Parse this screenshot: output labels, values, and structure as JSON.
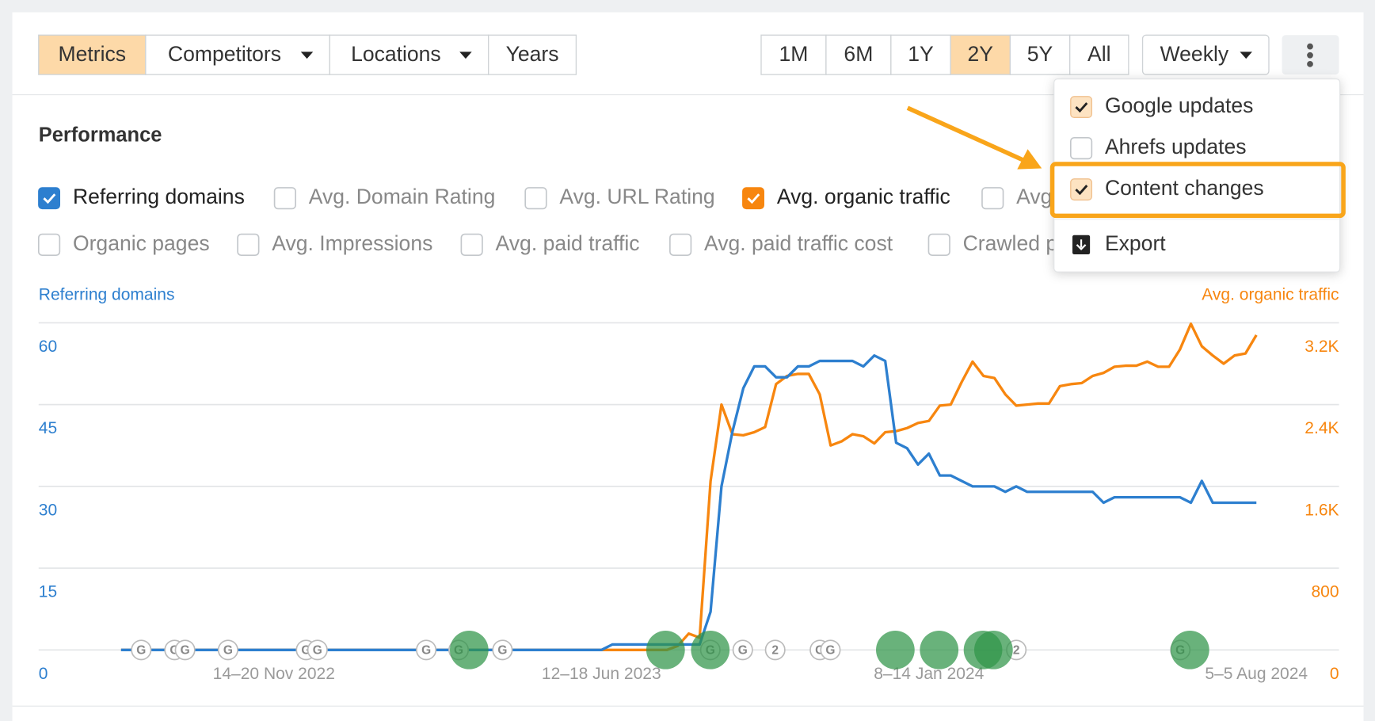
{
  "toolbar": {
    "view_tabs": [
      {
        "label": "Metrics",
        "active": true
      },
      {
        "label": "Competitors",
        "dropdown": true
      },
      {
        "label": "Locations",
        "dropdown": true
      },
      {
        "label": "Years"
      }
    ],
    "ranges": [
      {
        "label": "1M"
      },
      {
        "label": "6M"
      },
      {
        "label": "1Y"
      },
      {
        "label": "2Y",
        "active": true
      },
      {
        "label": "5Y"
      },
      {
        "label": "All"
      }
    ],
    "interval": {
      "label": "Weekly",
      "dropdown": true
    }
  },
  "menu": {
    "items": [
      {
        "label": "Google updates",
        "checked": true
      },
      {
        "label": "Ahrefs updates",
        "checked": false
      },
      {
        "label": "Content changes",
        "checked": true,
        "highlighted": true
      },
      {
        "label": "Export"
      }
    ]
  },
  "performance": {
    "title": "Performance",
    "metrics": [
      [
        {
          "label": "Referring domains",
          "checked": true
        },
        {
          "label": "Avg. Domain Rating",
          "checked": false
        },
        {
          "label": "Avg. URL Rating",
          "checked": false
        },
        {
          "label": "Avg. organic traffic",
          "checked": true
        },
        {
          "label": "Avg",
          "checked": false
        }
      ],
      [
        {
          "label": "Organic pages",
          "checked": false
        },
        {
          "label": "Avg. Impressions",
          "checked": false
        },
        {
          "label": "Avg. paid traffic",
          "checked": false
        },
        {
          "label": "Avg. paid traffic cost",
          "checked": false
        },
        {
          "label": "Crawled p",
          "checked": false
        }
      ]
    ]
  },
  "chart_data": {
    "type": "line",
    "categories": [
      null,
      null,
      null,
      null,
      null,
      null,
      null,
      null,
      null,
      null,
      null,
      null,
      null,
      null,
      "14–20 Nov 2022",
      null,
      null,
      null,
      null,
      null,
      null,
      null,
      null,
      null,
      null,
      null,
      null,
      null,
      null,
      null,
      null,
      null,
      null,
      null,
      null,
      null,
      null,
      null,
      null,
      null,
      null,
      null,
      null,
      null,
      "12–18 Jun 2023",
      null,
      null,
      null,
      null,
      null,
      null,
      null,
      null,
      null,
      null,
      null,
      null,
      null,
      null,
      null,
      null,
      null,
      null,
      null,
      null,
      null,
      null,
      null,
      null,
      null,
      null,
      null,
      null,
      null,
      "8–14 Jan 2024",
      null,
      null,
      null,
      null,
      null,
      null,
      null,
      null,
      null,
      null,
      null,
      null,
      null,
      null,
      null,
      null,
      null,
      null,
      null,
      null,
      null,
      null,
      null,
      null,
      null,
      null,
      null,
      null,
      null,
      "5–5 Aug 2024"
    ],
    "series": [
      {
        "name": "Referring domains",
        "color": "#2d7fcf",
        "values": [
          0,
          0,
          0,
          0,
          0,
          0,
          0,
          0,
          0,
          0,
          0,
          0,
          0,
          0,
          0,
          0,
          0,
          0,
          0,
          0,
          0,
          0,
          0,
          0,
          0,
          0,
          0,
          0,
          0,
          0,
          0,
          0,
          0,
          0,
          0,
          0,
          0,
          0,
          0,
          0,
          0,
          0,
          0,
          0,
          0,
          1,
          1,
          1,
          1,
          1,
          1,
          1,
          1,
          1,
          7,
          30,
          40,
          48,
          52,
          52,
          50,
          50,
          52,
          52,
          53,
          53,
          53,
          53,
          52,
          54,
          53,
          38,
          37,
          34,
          36,
          32,
          32,
          31,
          30,
          30,
          30,
          29,
          30,
          29,
          29,
          29,
          29,
          29,
          29,
          29,
          27,
          28,
          28,
          28,
          28,
          28,
          28,
          28,
          27,
          31,
          27,
          27,
          27,
          27,
          27
        ]
      },
      {
        "name": "Avg. organic traffic",
        "color": "#f7860f",
        "axis": "y2",
        "values": [
          0,
          0,
          0,
          0,
          0,
          0,
          0,
          0,
          0,
          0,
          0,
          0,
          0,
          0,
          0,
          0,
          0,
          0,
          0,
          0,
          0,
          0,
          0,
          0,
          0,
          0,
          0,
          0,
          0,
          0,
          0,
          0,
          0,
          0,
          0,
          0,
          0,
          0,
          0,
          0,
          0,
          0,
          0,
          0,
          0,
          0,
          0,
          0,
          0,
          0,
          0,
          40,
          160,
          120,
          1650,
          2400,
          2110,
          2100,
          2130,
          2180,
          2600,
          2680,
          2700,
          2700,
          2500,
          2000,
          2040,
          2110,
          2090,
          2020,
          2130,
          2140,
          2170,
          2220,
          2240,
          2390,
          2400,
          2620,
          2820,
          2680,
          2660,
          2500,
          2390,
          2400,
          2410,
          2410,
          2580,
          2600,
          2610,
          2680,
          2710,
          2770,
          2780,
          2780,
          2820,
          2770,
          2770,
          2940,
          3190,
          2970,
          2880,
          2800,
          2880,
          2900,
          3080
        ]
      }
    ],
    "ylim": [
      0,
      60
    ],
    "yticks": [
      0,
      15,
      30,
      45,
      60
    ],
    "y2lim": [
      0,
      3200
    ],
    "y2ticks": [
      0,
      800,
      {
        "value": 1600,
        "label": "1.6K"
      },
      {
        "value": 2400,
        "label": "2.4K"
      },
      {
        "value": 3200,
        "label": "3.2K"
      }
    ],
    "grid": true,
    "update_marker_label": "G",
    "grouped_markers": [
      2,
      2
    ]
  }
}
